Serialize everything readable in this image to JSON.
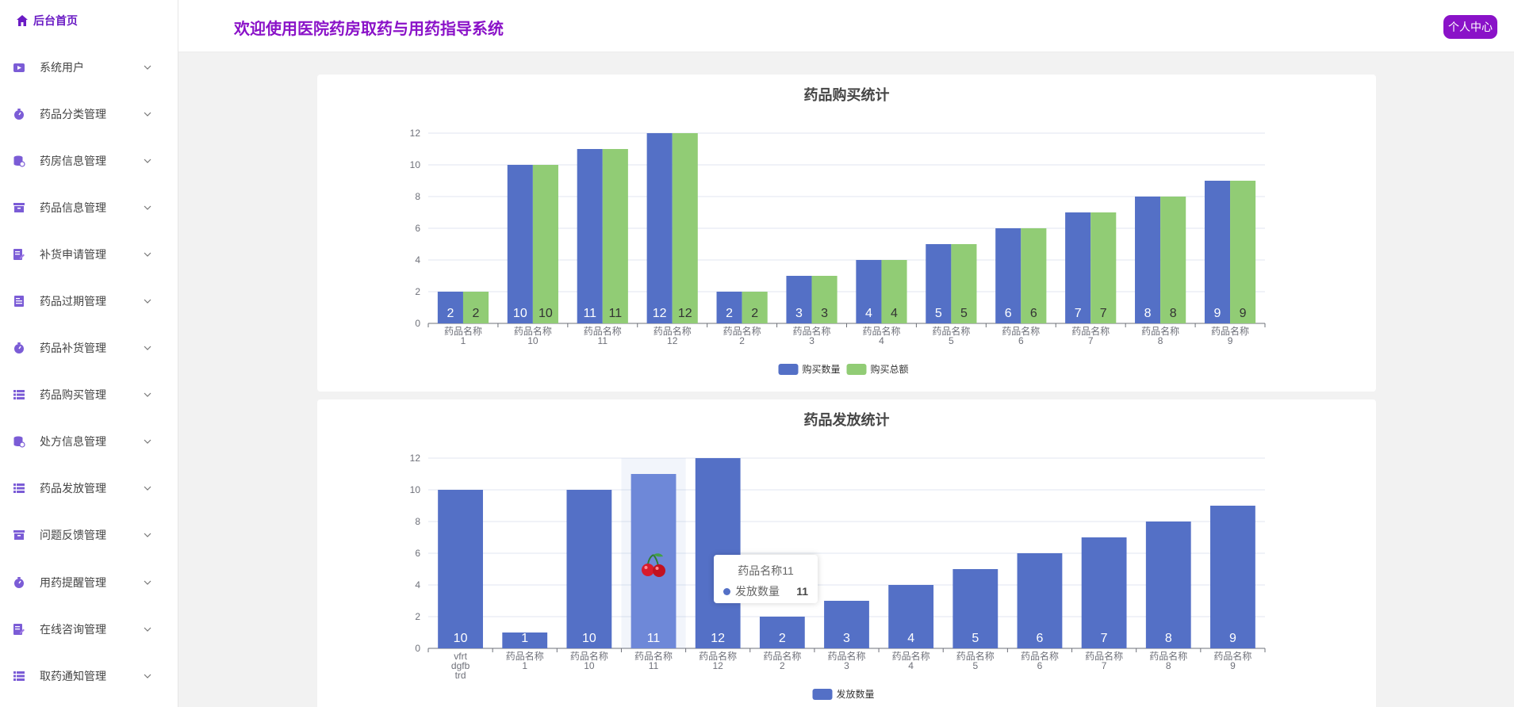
{
  "sidebar": {
    "home_label": "后台首页",
    "items": [
      {
        "label": "系统用户",
        "icon": "video-icon"
      },
      {
        "label": "药品分类管理",
        "icon": "timer-icon"
      },
      {
        "label": "药房信息管理",
        "icon": "database-icon"
      },
      {
        "label": "药品信息管理",
        "icon": "archive-icon"
      },
      {
        "label": "补货申请管理",
        "icon": "edit-doc-icon"
      },
      {
        "label": "药品过期管理",
        "icon": "document-icon"
      },
      {
        "label": "药品补货管理",
        "icon": "timer-icon"
      },
      {
        "label": "药品购买管理",
        "icon": "list-icon"
      },
      {
        "label": "处方信息管理",
        "icon": "database-icon"
      },
      {
        "label": "药品发放管理",
        "icon": "list-icon"
      },
      {
        "label": "问题反馈管理",
        "icon": "archive-icon"
      },
      {
        "label": "用药提醒管理",
        "icon": "timer-icon"
      },
      {
        "label": "在线咨询管理",
        "icon": "edit-doc-icon"
      },
      {
        "label": "取药通知管理",
        "icon": "list-icon"
      }
    ]
  },
  "header": {
    "title": "欢迎使用医院药房取药与用药指导系统",
    "user_center_label": "个人中心"
  },
  "colors": {
    "accent": "#8a12c8",
    "series_blue": "#5470c6",
    "series_green": "#91cc75",
    "highlight_blue": "#6e88d8"
  },
  "chart_data": [
    {
      "type": "bar",
      "title": "药品购买统计",
      "categories": [
        "药品名称\n1",
        "药品名称\n10",
        "药品名称\n11",
        "药品名称\n12",
        "药品名称\n2",
        "药品名称\n3",
        "药品名称\n4",
        "药品名称\n5",
        "药品名称\n6",
        "药品名称\n7",
        "药品名称\n8",
        "药品名称\n9"
      ],
      "series": [
        {
          "name": "购买数量",
          "values": [
            2,
            10,
            11,
            12,
            2,
            3,
            4,
            5,
            6,
            7,
            8,
            9
          ]
        },
        {
          "name": "购买总额",
          "values": [
            2,
            10,
            11,
            12,
            2,
            3,
            4,
            5,
            6,
            7,
            8,
            9
          ]
        }
      ],
      "yticks": [
        0,
        2,
        4,
        6,
        8,
        10,
        12
      ],
      "ylim": [
        0,
        12
      ],
      "legend": "bottom-center"
    },
    {
      "type": "bar",
      "title": "药品发放统计",
      "categories": [
        "vfrt\ndgfb\ntrd",
        "药品名称\n1",
        "药品名称\n10",
        "药品名称\n11",
        "药品名称\n12",
        "药品名称\n2",
        "药品名称\n3",
        "药品名称\n4",
        "药品名称\n5",
        "药品名称\n6",
        "药品名称\n7",
        "药品名称\n8",
        "药品名称\n9"
      ],
      "series": [
        {
          "name": "发放数量",
          "values": [
            10,
            1,
            10,
            11,
            12,
            2,
            3,
            4,
            5,
            6,
            7,
            8,
            9
          ]
        }
      ],
      "yticks": [
        0,
        2,
        4,
        6,
        8,
        10,
        12
      ],
      "ylim": [
        0,
        12
      ],
      "legend": "bottom-center",
      "highlighted_index": 3
    }
  ],
  "tooltip": {
    "title": "药品名称11",
    "series_name": "发放数量",
    "value": "11"
  }
}
